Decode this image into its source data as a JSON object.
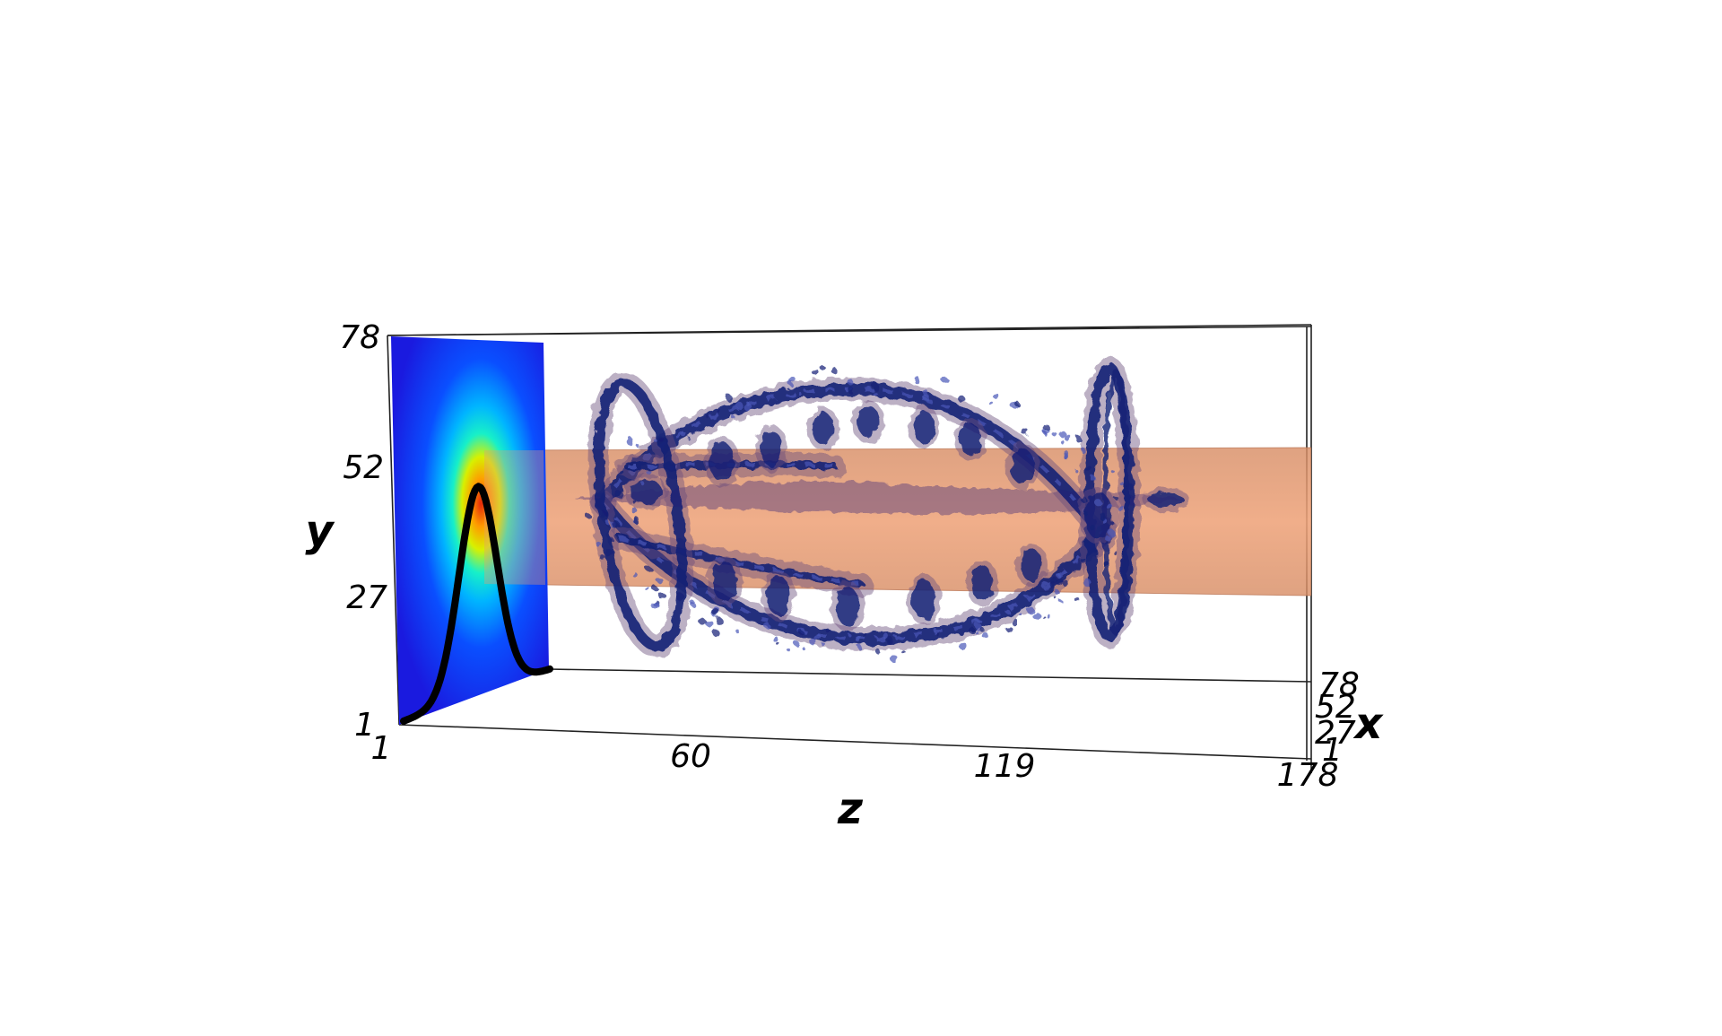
{
  "figure": {
    "axes": {
      "y": {
        "label": "y",
        "ticks": [
          "1",
          "27",
          "52",
          "78"
        ]
      },
      "z": {
        "label": "z",
        "ticks": [
          "1",
          "60",
          "119",
          "178"
        ]
      },
      "x": {
        "label": "x",
        "ticks": [
          "1",
          "27",
          "52",
          "78"
        ]
      }
    },
    "colors": {
      "slice_colormap": [
        "#1a1adf",
        "#0a4fff",
        "#00b5ff",
        "#17f0c8",
        "#d8f000",
        "#ff9a00",
        "#e6270a"
      ],
      "beam": "#e4935f",
      "isosurface_dark": "#131f75",
      "isosurface_light": "#4a57b8",
      "isosurface_halo": "#6b4d7c",
      "profile_curve": "#000000",
      "frame_lines": "#222222"
    }
  }
}
